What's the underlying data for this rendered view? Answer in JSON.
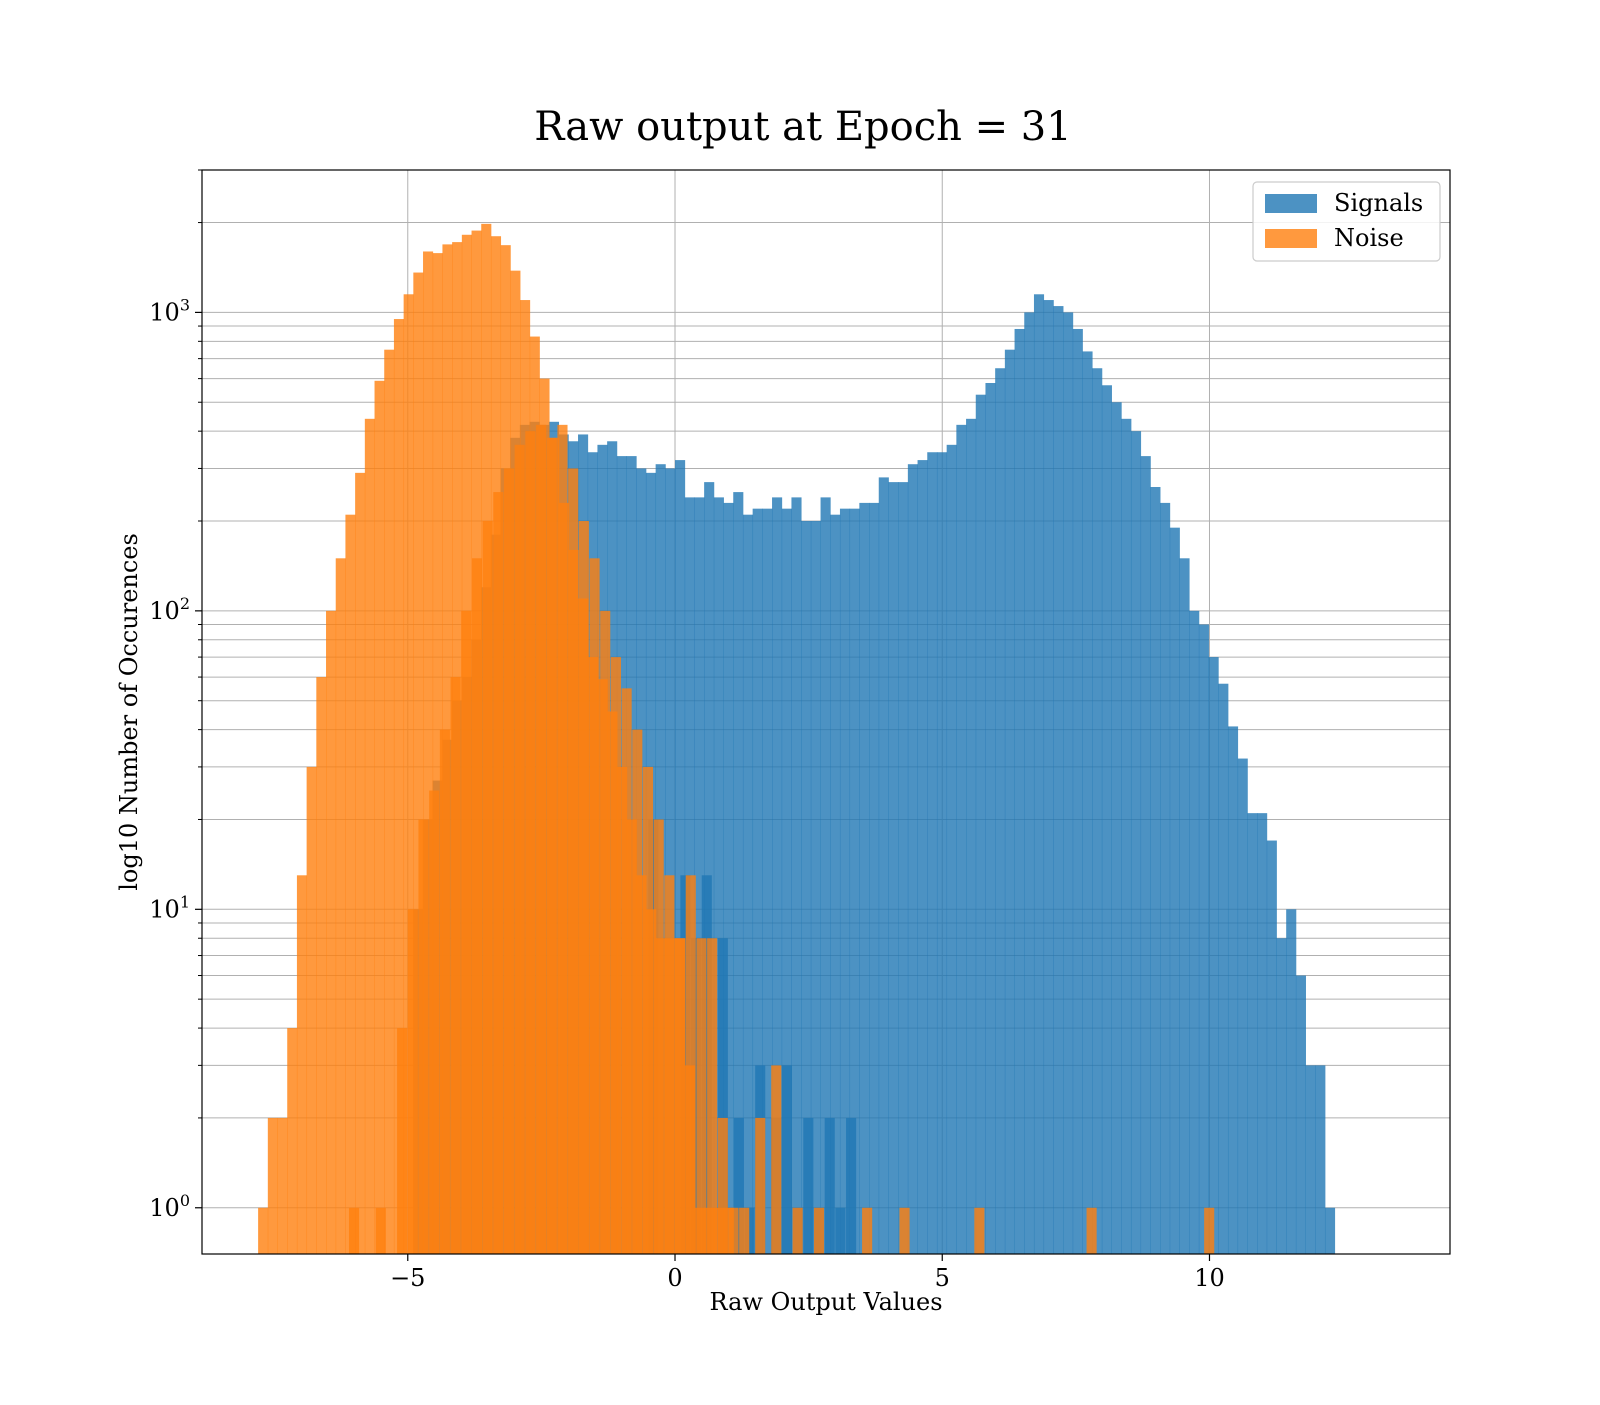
{
  "chart_data": {
    "type": "bar",
    "subtype": "histogram",
    "title": "Raw output at Epoch = 31",
    "xlabel": "Raw Output Values",
    "ylabel": "log10 Number of Occurences",
    "x_scale": "linear",
    "y_scale": "log",
    "xlim": [
      -8.85,
      14.5
    ],
    "ylim": [
      0.7,
      3000
    ],
    "x_ticks": [
      {
        "value": -5,
        "label": "−5"
      },
      {
        "value": 0,
        "label": "0"
      },
      {
        "value": 5,
        "label": "5"
      },
      {
        "value": 10,
        "label": "10"
      }
    ],
    "y_ticks": [
      {
        "value": 1,
        "base": "10",
        "exp": "0"
      },
      {
        "value": 10,
        "base": "10",
        "exp": "1"
      },
      {
        "value": 100,
        "base": "10",
        "exp": "2"
      },
      {
        "value": 1000,
        "base": "10",
        "exp": "3"
      }
    ],
    "grid": true,
    "grid_minor_y": true,
    "legend": {
      "position": "top-right"
    },
    "series": [
      {
        "name": "Signals",
        "color": "#1f77b4",
        "opacity": 0.8,
        "bin_start": -4.9,
        "bin_width": 0.1815,
        "counts": [
          10,
          20,
          27,
          37,
          50,
          60,
          80,
          120,
          180,
          300,
          380,
          420,
          430,
          420,
          430,
          390,
          370,
          390,
          340,
          360,
          370,
          330,
          330,
          300,
          290,
          310,
          300,
          320,
          240,
          240,
          270,
          240,
          230,
          250,
          210,
          220,
          220,
          240,
          220,
          240,
          200,
          200,
          240,
          210,
          220,
          220,
          230,
          230,
          280,
          270,
          270,
          310,
          320,
          340,
          340,
          360,
          420,
          440,
          530,
          580,
          650,
          750,
          880,
          1000,
          1150,
          1100,
          1050,
          1000,
          880,
          740,
          650,
          570,
          500,
          440,
          400,
          330,
          260,
          230,
          190,
          150,
          100,
          90,
          70,
          57,
          41,
          32,
          21,
          21,
          17,
          8,
          10,
          6,
          3,
          3,
          1
        ],
        "sparse": [
          {
            "x": -0.5,
            "count": 20
          },
          {
            "x": 0.1,
            "count": 13
          },
          {
            "x": 0.3,
            "count": 8
          },
          {
            "x": 0.5,
            "count": 13
          },
          {
            "x": 0.8,
            "count": 8
          },
          {
            "x": 1.1,
            "count": 2
          },
          {
            "x": 1.3,
            "count": 1
          },
          {
            "x": 1.5,
            "count": 3
          },
          {
            "x": 1.8,
            "count": 2
          },
          {
            "x": 2.0,
            "count": 3
          },
          {
            "x": 2.2,
            "count": 1
          },
          {
            "x": 2.4,
            "count": 2
          },
          {
            "x": 2.6,
            "count": 1
          },
          {
            "x": 2.8,
            "count": 2
          },
          {
            "x": 3.0,
            "count": 1
          },
          {
            "x": 3.2,
            "count": 2
          }
        ]
      },
      {
        "name": "Noise",
        "color": "#ff7f0e",
        "opacity": 0.8,
        "bin_start": -7.8,
        "bin_width": 0.1815,
        "counts": [
          1,
          2,
          2,
          4,
          13,
          30,
          60,
          100,
          150,
          210,
          290,
          440,
          590,
          750,
          950,
          1150,
          1360,
          1600,
          1580,
          1690,
          1720,
          1820,
          1880,
          1980,
          1800,
          1680,
          1380,
          1100,
          830,
          600,
          380,
          230,
          160,
          110,
          70,
          59,
          46,
          30,
          20,
          13,
          10,
          8,
          8,
          8,
          3,
          1,
          1,
          1,
          1
        ],
        "sparse": [
          {
            "x": -6.1,
            "count": 1
          },
          {
            "x": -5.6,
            "count": 1
          },
          {
            "x": -5.2,
            "count": 4
          },
          {
            "x": -5.0,
            "count": 10
          },
          {
            "x": -4.8,
            "count": 20
          },
          {
            "x": -4.6,
            "count": 25
          },
          {
            "x": -4.4,
            "count": 40
          },
          {
            "x": -4.2,
            "count": 60
          },
          {
            "x": -4.0,
            "count": 100
          },
          {
            "x": -3.8,
            "count": 150
          },
          {
            "x": -3.6,
            "count": 200
          },
          {
            "x": -3.4,
            "count": 250
          },
          {
            "x": -3.2,
            "count": 300
          },
          {
            "x": -3.0,
            "count": 360
          },
          {
            "x": -2.8,
            "count": 400
          },
          {
            "x": -2.6,
            "count": 420
          },
          {
            "x": -2.4,
            "count": 380
          },
          {
            "x": -2.2,
            "count": 420
          },
          {
            "x": -2.0,
            "count": 300
          },
          {
            "x": -1.8,
            "count": 200
          },
          {
            "x": -1.6,
            "count": 150
          },
          {
            "x": -1.4,
            "count": 100
          },
          {
            "x": -1.2,
            "count": 70
          },
          {
            "x": -1.0,
            "count": 55
          },
          {
            "x": -0.8,
            "count": 40
          },
          {
            "x": -0.6,
            "count": 30
          },
          {
            "x": -0.4,
            "count": 20
          },
          {
            "x": -0.2,
            "count": 13
          },
          {
            "x": 0.0,
            "count": 8
          },
          {
            "x": 0.2,
            "count": 13
          },
          {
            "x": 0.4,
            "count": 8
          },
          {
            "x": 0.6,
            "count": 8
          },
          {
            "x": 0.8,
            "count": 2
          },
          {
            "x": 1.0,
            "count": 1
          },
          {
            "x": 1.2,
            "count": 1
          },
          {
            "x": 1.5,
            "count": 2
          },
          {
            "x": 1.8,
            "count": 3
          },
          {
            "x": 2.2,
            "count": 1
          },
          {
            "x": 2.6,
            "count": 1
          },
          {
            "x": 3.5,
            "count": 1
          },
          {
            "x": 4.2,
            "count": 1
          },
          {
            "x": 5.6,
            "count": 1
          },
          {
            "x": 7.7,
            "count": 1
          },
          {
            "x": 9.9,
            "count": 1
          }
        ]
      }
    ]
  }
}
